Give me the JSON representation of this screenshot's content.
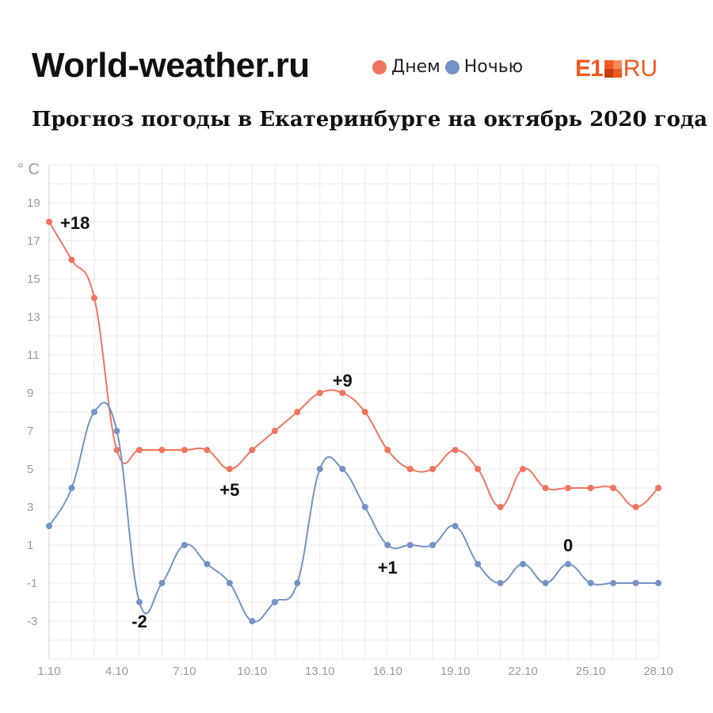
{
  "header": {
    "brand": "World-weather.ru",
    "logo_main": "E1",
    "logo_suffix": "RU",
    "subtitle": "Прогноз погоды в Екатеринбурге на октябрь 2020 года"
  },
  "legend": [
    {
      "label": "Днем",
      "color": "#f07560"
    },
    {
      "label": "Ночью",
      "color": "#7393c6"
    }
  ],
  "colors": {
    "day": "#f07560",
    "night": "#7393c6",
    "logo": "#f05a22",
    "grid": "#e9e9e9"
  },
  "chart_data": {
    "type": "line",
    "unit_label": "° C",
    "x": [
      "1.10",
      "2.10",
      "3.10",
      "4.10",
      "5.10",
      "6.10",
      "7.10",
      "8.10",
      "9.10",
      "10.10",
      "11.10",
      "12.10",
      "13.10",
      "14.10",
      "15.10",
      "16.10",
      "17.10",
      "18.10",
      "19.10",
      "20.10",
      "21.10",
      "22.10",
      "23.10",
      "24.10",
      "25.10",
      "26.10",
      "27.10",
      "28.10"
    ],
    "x_tick_labels": [
      "1.10",
      "4.10",
      "7.10",
      "10.10",
      "13.10",
      "16.10",
      "19.10",
      "22.10",
      "25.10",
      "28.10"
    ],
    "y_ticks": [
      19,
      17,
      15,
      13,
      11,
      9,
      7,
      5,
      3,
      1,
      -1,
      -3
    ],
    "ylim": [
      -5,
      21
    ],
    "grid": true,
    "series": [
      {
        "name": "Днем",
        "color": "#f07560",
        "values": [
          18,
          16,
          14,
          6,
          6,
          6,
          6,
          6,
          5,
          6,
          7,
          8,
          9,
          9,
          8,
          6,
          5,
          5,
          6,
          5,
          3,
          5,
          4,
          4,
          4,
          4,
          3,
          4
        ]
      },
      {
        "name": "Ночью",
        "color": "#7393c6",
        "values": [
          2,
          4,
          8,
          7,
          -2,
          -1,
          1,
          0,
          -1,
          -3,
          -2,
          -1,
          5,
          5,
          3,
          1,
          1,
          1,
          2,
          0,
          -1,
          0,
          -1,
          0,
          -1,
          -1,
          -1,
          -1
        ]
      }
    ],
    "annotations": [
      {
        "text": "+18",
        "series": 0,
        "index": 0
      },
      {
        "text": "+5",
        "series": 0,
        "index": 8
      },
      {
        "text": "+9",
        "series": 0,
        "index": 13
      },
      {
        "text": "-2",
        "series": 1,
        "index": 4
      },
      {
        "text": "+1",
        "series": 1,
        "index": 15
      },
      {
        "text": "0",
        "series": 1,
        "index": 23
      }
    ]
  }
}
